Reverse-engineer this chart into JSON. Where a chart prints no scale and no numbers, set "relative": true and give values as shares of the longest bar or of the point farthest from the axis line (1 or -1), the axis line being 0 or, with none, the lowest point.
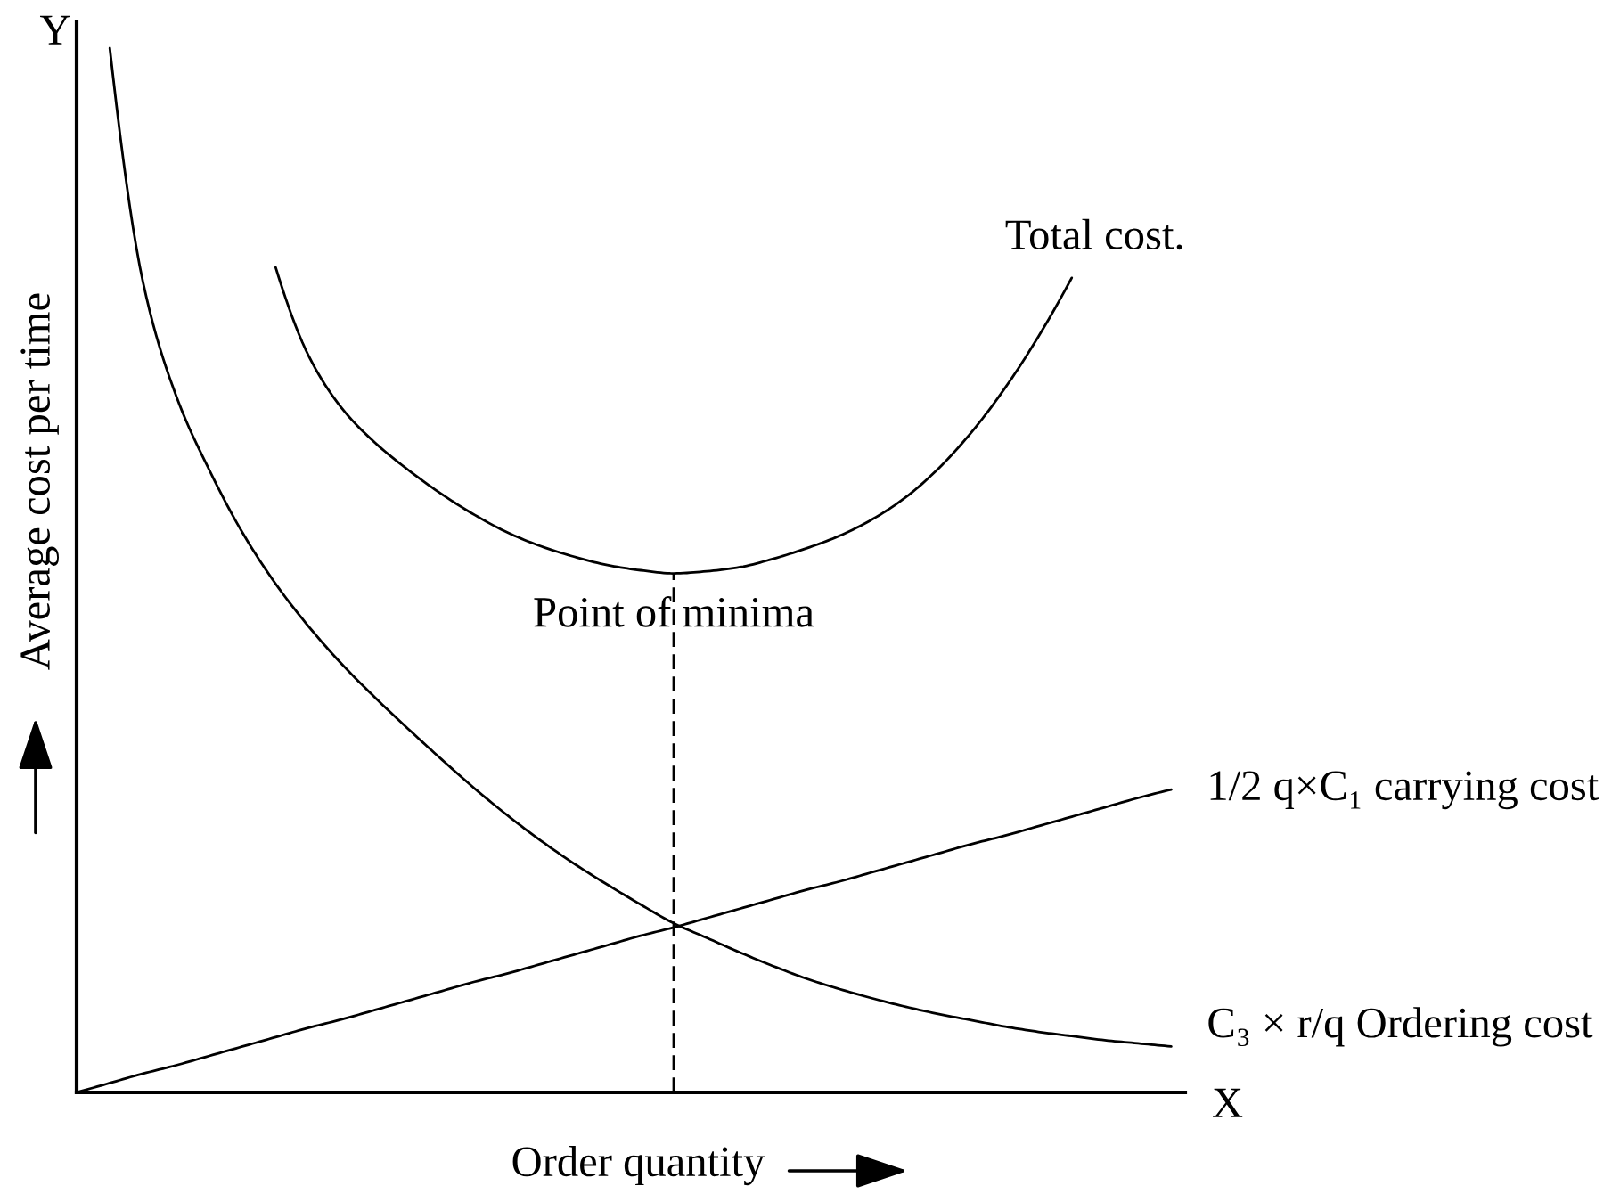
{
  "chart_data": {
    "type": "line",
    "relative": true,
    "xlabel": "Order quantity",
    "ylabel": "Average cost per time",
    "annotations": [
      "Point of minima",
      "Y",
      "X"
    ],
    "categories": [
      null,
      null,
      null,
      null,
      null,
      null,
      null,
      null,
      null,
      null,
      null,
      null,
      null,
      null,
      null,
      null,
      null,
      null,
      null,
      null,
      null,
      null,
      null,
      null,
      null,
      null,
      null,
      null,
      null,
      null,
      null,
      null,
      null,
      null
    ],
    "series": [
      {
        "name": "Total cost.",
        "color": "#000000",
        "values": [
          null,
          null,
          null,
          null,
          null,
          null,
          0.79,
          0.705,
          0.655,
          0.622,
          0.596,
          0.573,
          0.553,
          0.536,
          0.523,
          0.513,
          0.505,
          0.5,
          0.497,
          0.499,
          0.503,
          0.511,
          0.521,
          0.533,
          0.549,
          0.57,
          0.598,
          0.633,
          0.675,
          0.724,
          0.78,
          null,
          null,
          null
        ]
      },
      {
        "name": "1/2 q×C₁ carrying cost",
        "color": "#000000",
        "values": [
          0,
          0.009,
          0.018,
          0.026,
          0.035,
          0.044,
          0.053,
          0.062,
          0.07,
          0.079,
          0.088,
          0.097,
          0.106,
          0.114,
          0.123,
          0.132,
          0.141,
          0.15,
          0.158,
          0.167,
          0.176,
          0.185,
          0.194,
          0.202,
          0.211,
          0.22,
          0.229,
          0.238,
          0.246,
          0.255,
          0.264,
          0.273,
          0.282,
          0.29
        ]
      },
      {
        "name": "C₃ × r/q Ordering cost",
        "color": "#000000",
        "values": [
          null,
          1,
          0.776,
          0.667,
          0.596,
          0.536,
          0.487,
          0.446,
          0.41,
          0.378,
          0.348,
          0.319,
          0.291,
          0.265,
          0.241,
          0.219,
          0.199,
          0.18,
          0.162,
          0.148,
          0.134,
          0.121,
          0.109,
          0.099,
          0.09,
          0.082,
          0.075,
          0.069,
          0.063,
          0.058,
          0.054,
          0.05,
          0.047,
          0.044
        ]
      }
    ]
  }
}
